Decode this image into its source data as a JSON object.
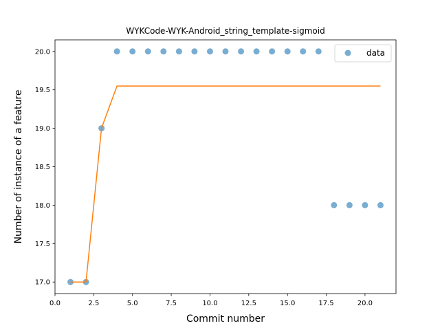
{
  "chart_data": {
    "type": "scatter",
    "title": "WYKCode-WYK-Android_string_template-sigmoid",
    "xlabel": "Commit number",
    "ylabel": "Number of instance of a feature",
    "xlim": [
      0.0,
      22.0
    ],
    "ylim": [
      16.85,
      20.15
    ],
    "xticks": [
      0.0,
      2.5,
      5.0,
      7.5,
      10.0,
      12.5,
      15.0,
      17.5,
      20.0
    ],
    "xtick_labels": [
      "0.0",
      "2.5",
      "5.0",
      "7.5",
      "10.0",
      "12.5",
      "15.0",
      "17.5",
      "20.0"
    ],
    "yticks": [
      17.0,
      17.5,
      18.0,
      18.5,
      19.0,
      19.5,
      20.0
    ],
    "ytick_labels": [
      "17.0",
      "17.5",
      "18.0",
      "18.5",
      "19.0",
      "19.5",
      "20.0"
    ],
    "grid": false,
    "legend_position": "top-right",
    "series": [
      {
        "name": "data",
        "kind": "scatter",
        "color": "#1f77b4",
        "x": [
          1,
          2,
          3,
          4,
          5,
          6,
          7,
          8,
          9,
          10,
          11,
          12,
          13,
          14,
          15,
          16,
          17,
          18,
          19,
          20,
          21
        ],
        "y": [
          17,
          17,
          19,
          20,
          20,
          20,
          20,
          20,
          20,
          20,
          20,
          20,
          20,
          20,
          20,
          20,
          20,
          18,
          18,
          18,
          18
        ]
      },
      {
        "kind": "line",
        "color": "#ff7f0e",
        "x": [
          1,
          2,
          3,
          4,
          5,
          6,
          7,
          8,
          9,
          10,
          11,
          12,
          13,
          14,
          15,
          16,
          17,
          18,
          19,
          20,
          21
        ],
        "y": [
          17.0,
          17.0,
          19.0,
          19.55,
          19.55,
          19.55,
          19.55,
          19.55,
          19.55,
          19.55,
          19.55,
          19.55,
          19.55,
          19.55,
          19.55,
          19.55,
          19.55,
          19.55,
          19.55,
          19.55,
          19.55
        ]
      }
    ]
  }
}
